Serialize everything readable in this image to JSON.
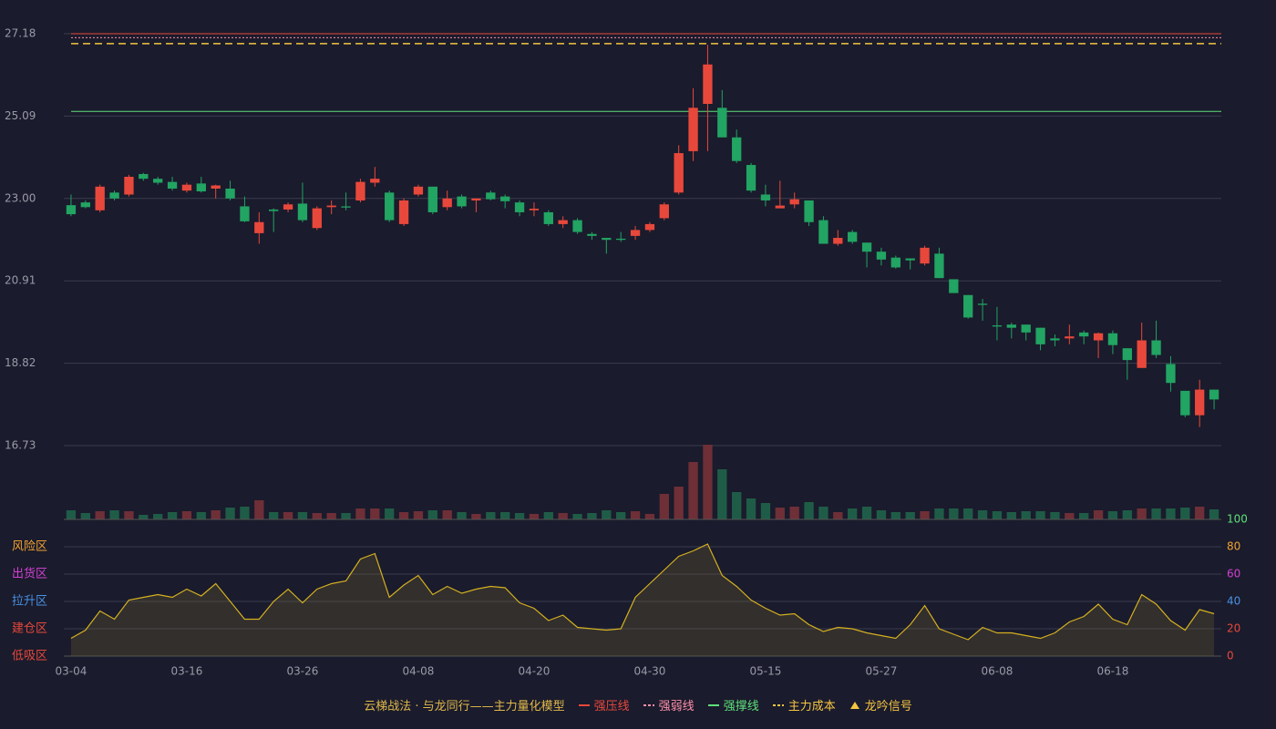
{
  "chart_data": {
    "type": "candlestick",
    "title": "云梯战法 · 与龙同行——主力量化模型",
    "categories": [
      "03-04",
      null,
      null,
      null,
      null,
      null,
      null,
      null,
      "03-16",
      null,
      null,
      null,
      null,
      null,
      null,
      null,
      "03-26",
      null,
      null,
      null,
      null,
      null,
      null,
      null,
      "04-08",
      null,
      null,
      null,
      null,
      null,
      null,
      null,
      "04-20",
      null,
      null,
      null,
      null,
      null,
      null,
      null,
      "04-30",
      null,
      null,
      null,
      null,
      null,
      null,
      null,
      "05-15",
      null,
      null,
      null,
      null,
      null,
      null,
      null,
      "05-27",
      null,
      null,
      null,
      null,
      null,
      null,
      null,
      "06-08",
      null,
      null,
      null,
      null,
      null,
      null,
      null,
      "06-18",
      null,
      null,
      null,
      null,
      null,
      null,
      null
    ],
    "open": [
      22.83,
      22.9,
      22.7,
      23.15,
      23.1,
      23.62,
      23.5,
      23.42,
      23.2,
      23.38,
      23.25,
      23.25,
      22.8,
      22.12,
      22.72,
      22.72,
      22.87,
      22.25,
      22.78,
      22.8,
      22.95,
      23.4,
      23.15,
      22.35,
      23.1,
      23.3,
      22.78,
      23.05,
      22.95,
      23.15,
      23.05,
      22.9,
      22.7,
      22.65,
      22.35,
      22.45,
      22.1,
      22.0,
      21.98,
      22.05,
      22.2,
      22.5,
      23.15,
      24.2,
      25.4,
      25.3,
      24.55,
      23.85,
      23.1,
      22.75,
      22.85,
      22.95,
      22.45,
      21.85,
      22.15,
      21.88,
      21.65,
      21.5,
      21.48,
      21.35,
      21.6,
      20.95,
      20.55,
      20.33,
      19.78,
      19.8,
      19.8,
      19.72,
      19.45,
      19.45,
      19.6,
      19.4,
      19.58,
      19.2,
      18.7,
      19.4,
      18.8,
      18.12,
      17.5,
      18.15
    ],
    "high": [
      23.1,
      22.95,
      23.35,
      23.2,
      23.6,
      23.65,
      23.55,
      23.55,
      23.4,
      23.55,
      23.35,
      23.45,
      23.05,
      22.65,
      22.75,
      22.9,
      23.4,
      22.8,
      22.95,
      23.15,
      23.5,
      23.8,
      23.2,
      23.0,
      23.35,
      23.3,
      23.2,
      23.1,
      23.0,
      23.2,
      23.1,
      22.95,
      22.9,
      22.7,
      22.55,
      22.5,
      22.15,
      22.0,
      22.15,
      22.3,
      22.4,
      22.9,
      24.35,
      25.8,
      26.9,
      25.75,
      24.75,
      23.9,
      23.35,
      23.45,
      23.15,
      22.95,
      22.55,
      22.2,
      22.2,
      21.88,
      21.75,
      21.55,
      21.48,
      21.8,
      21.75,
      20.95,
      20.55,
      20.45,
      20.25,
      19.85,
      19.8,
      19.72,
      19.55,
      19.8,
      19.65,
      19.6,
      19.65,
      19.2,
      19.85,
      19.9,
      19.0,
      18.12,
      18.4,
      18.15
    ],
    "low": [
      22.55,
      22.75,
      22.65,
      22.95,
      23.05,
      23.45,
      23.35,
      23.2,
      23.15,
      23.15,
      23.0,
      22.95,
      22.4,
      21.85,
      22.15,
      22.65,
      22.4,
      22.2,
      22.6,
      22.7,
      22.9,
      23.3,
      22.4,
      22.3,
      23.05,
      22.6,
      22.7,
      22.75,
      22.65,
      22.95,
      22.75,
      22.55,
      22.55,
      22.3,
      22.25,
      22.1,
      21.95,
      21.6,
      21.9,
      21.95,
      22.15,
      22.45,
      23.1,
      23.95,
      24.2,
      24.55,
      23.9,
      23.15,
      22.8,
      22.75,
      22.75,
      22.3,
      21.85,
      21.8,
      21.85,
      21.25,
      21.3,
      21.22,
      21.2,
      21.3,
      20.98,
      20.6,
      19.95,
      19.9,
      19.4,
      19.45,
      19.4,
      19.15,
      19.25,
      19.3,
      19.3,
      18.95,
      19.05,
      18.4,
      18.7,
      18.95,
      18.1,
      17.45,
      17.2,
      17.65
    ],
    "close": [
      22.6,
      22.78,
      23.3,
      23.0,
      23.55,
      23.5,
      23.4,
      23.25,
      23.35,
      23.18,
      23.33,
      23.0,
      22.42,
      22.4,
      22.68,
      22.85,
      22.45,
      22.75,
      22.82,
      22.77,
      23.42,
      23.5,
      22.45,
      22.95,
      23.3,
      22.65,
      23.0,
      22.8,
      23.0,
      22.98,
      22.93,
      22.65,
      22.74,
      22.35,
      22.45,
      22.15,
      22.05,
      21.95,
      21.95,
      22.2,
      22.35,
      22.85,
      24.15,
      25.3,
      26.4,
      24.55,
      23.95,
      23.2,
      22.95,
      22.82,
      22.98,
      22.4,
      21.85,
      22.0,
      21.9,
      21.65,
      21.45,
      21.25,
      21.43,
      21.75,
      20.98,
      20.6,
      19.98,
      20.3,
      19.75,
      19.72,
      19.6,
      19.3,
      19.4,
      19.5,
      19.5,
      19.58,
      19.28,
      18.9,
      19.4,
      19.03,
      18.32,
      17.5,
      18.15,
      17.9
    ],
    "up_color": "#e8483b",
    "down_color": "#22a463",
    "ylim": [
      16.73,
      27.18
    ],
    "yticks": [
      16.73,
      18.82,
      20.91,
      {
        "value": 23,
        "label": "23.00"
      },
      25.09,
      27.18
    ],
    "levels": [
      {
        "name": "强压线",
        "value": 27.18,
        "color": "#e8483b",
        "style": "solid"
      },
      {
        "name": "强弱线",
        "value": 27.08,
        "color": "#ff8fa8",
        "style": "dotted"
      },
      {
        "name": "强撑线",
        "value": 25.21,
        "color": "#5fe07a",
        "style": "solid"
      },
      {
        "name": "主力成本",
        "value": 26.93,
        "color": "#f5c542",
        "style": "dashed"
      }
    ],
    "signal": {
      "name": "龙吟信号",
      "color": "#f5c542"
    },
    "volume": {
      "ylim": [
        0,
        82
      ],
      "up_color": "#6e2f37",
      "down_color": "#1f5c47",
      "values": [
        10,
        7,
        9,
        10,
        9,
        5,
        6,
        8,
        9,
        8,
        10,
        13,
        14,
        21,
        8,
        8,
        8,
        7,
        7,
        7,
        12,
        12,
        12,
        8,
        9,
        10,
        10,
        8,
        6,
        8,
        8,
        7,
        6,
        8,
        7,
        6,
        7,
        10,
        8,
        9,
        6,
        28,
        36,
        63,
        82,
        55,
        30,
        23,
        18,
        13,
        14,
        19,
        14,
        8,
        12,
        14,
        10,
        8,
        8,
        9,
        12,
        12,
        12,
        10,
        9,
        8,
        9,
        9,
        8,
        7,
        7,
        10,
        9,
        10,
        12,
        12,
        12,
        13,
        14,
        11
      ]
    },
    "indicator": {
      "ylim": [
        0,
        100
      ],
      "yticks": [
        0,
        20,
        40,
        60,
        80,
        100
      ],
      "ytick_colors": [
        "#e8483b",
        "#e8483b",
        "#4a90e2",
        "#d040d0",
        "#f0a030",
        "#5fe07a"
      ],
      "zones": [
        {
          "label": "低吸区",
          "value": 0,
          "color": "#e8483b"
        },
        {
          "label": "建仓区",
          "value": 20,
          "color": "#e8483b"
        },
        {
          "label": "拉升区",
          "value": 40,
          "color": "#4a90e2"
        },
        {
          "label": "出货区",
          "value": 60,
          "color": "#d040d0"
        },
        {
          "label": "风险区",
          "value": 80,
          "color": "#f0a030"
        }
      ],
      "color": "#d4b020",
      "values": [
        13,
        19,
        33,
        27,
        41,
        43,
        45,
        43,
        49,
        44,
        53,
        40,
        27,
        27,
        40,
        49,
        39,
        49,
        53,
        55,
        71,
        75,
        43,
        52,
        59,
        45,
        51,
        46,
        49,
        51,
        50,
        39,
        35,
        26,
        30,
        21,
        20,
        19,
        20,
        43,
        53,
        63,
        73,
        77,
        82,
        59,
        51,
        41,
        35,
        30,
        31,
        23,
        18,
        21,
        20,
        17,
        15,
        13,
        23,
        37,
        20,
        16,
        12,
        21,
        17,
        17,
        15,
        13,
        17,
        25,
        29,
        38,
        27,
        23,
        45,
        38,
        26,
        19,
        34,
        31
      ]
    }
  }
}
